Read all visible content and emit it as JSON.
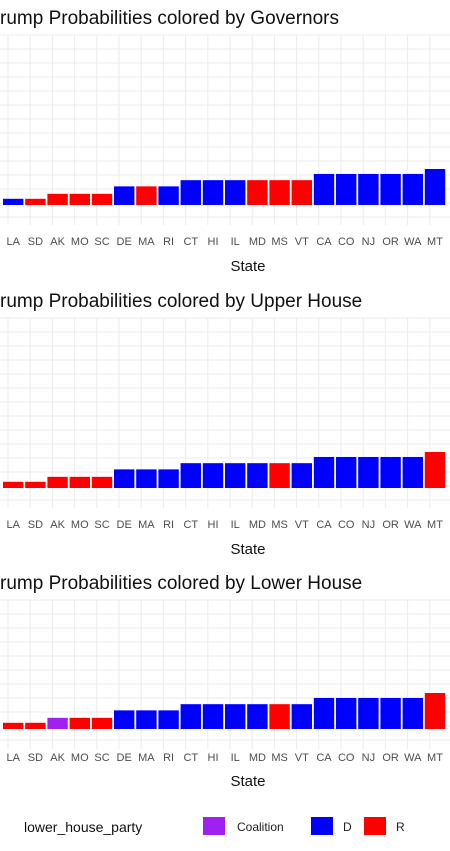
{
  "chart_data": [
    {
      "type": "bar",
      "title": "rump Probabilities colored by Governors",
      "xlabel": "State",
      "x_tick_labels": [
        "LA",
        "SD",
        "AK",
        "MO",
        "SC",
        "DE",
        "MA",
        "RI",
        "CT",
        "HI",
        "IL",
        "MD",
        "MS",
        "VT",
        "CA",
        "CO",
        "NJ",
        "OR",
        "WA",
        "MT"
      ],
      "bars": [
        {
          "value": 0.05,
          "party": "D"
        },
        {
          "value": 0.05,
          "party": "R"
        },
        {
          "value": 0.09,
          "party": "R"
        },
        {
          "value": 0.09,
          "party": "R"
        },
        {
          "value": 0.09,
          "party": "R"
        },
        {
          "value": 0.15,
          "party": "D"
        },
        {
          "value": 0.15,
          "party": "R"
        },
        {
          "value": 0.15,
          "party": "D"
        },
        {
          "value": 0.2,
          "party": "D"
        },
        {
          "value": 0.2,
          "party": "D"
        },
        {
          "value": 0.2,
          "party": "D"
        },
        {
          "value": 0.2,
          "party": "R"
        },
        {
          "value": 0.2,
          "party": "R"
        },
        {
          "value": 0.2,
          "party": "R"
        },
        {
          "value": 0.25,
          "party": "D"
        },
        {
          "value": 0.25,
          "party": "D"
        },
        {
          "value": 0.25,
          "party": "D"
        },
        {
          "value": 0.25,
          "party": "D"
        },
        {
          "value": 0.25,
          "party": "D"
        },
        {
          "value": 0.29,
          "party": "D"
        }
      ],
      "grid": true
    },
    {
      "type": "bar",
      "title": "rump Probabilities colored by Upper House",
      "xlabel": "State",
      "x_tick_labels": [
        "LA",
        "SD",
        "AK",
        "MO",
        "SC",
        "DE",
        "MA",
        "RI",
        "CT",
        "HI",
        "IL",
        "MD",
        "MS",
        "VT",
        "CA",
        "CO",
        "NJ",
        "OR",
        "WA",
        "MT"
      ],
      "bars": [
        {
          "value": 0.05,
          "party": "R"
        },
        {
          "value": 0.05,
          "party": "R"
        },
        {
          "value": 0.09,
          "party": "R"
        },
        {
          "value": 0.09,
          "party": "R"
        },
        {
          "value": 0.09,
          "party": "R"
        },
        {
          "value": 0.15,
          "party": "D"
        },
        {
          "value": 0.15,
          "party": "D"
        },
        {
          "value": 0.15,
          "party": "D"
        },
        {
          "value": 0.2,
          "party": "D"
        },
        {
          "value": 0.2,
          "party": "D"
        },
        {
          "value": 0.2,
          "party": "D"
        },
        {
          "value": 0.2,
          "party": "D"
        },
        {
          "value": 0.2,
          "party": "R"
        },
        {
          "value": 0.2,
          "party": "D"
        },
        {
          "value": 0.25,
          "party": "D"
        },
        {
          "value": 0.25,
          "party": "D"
        },
        {
          "value": 0.25,
          "party": "D"
        },
        {
          "value": 0.25,
          "party": "D"
        },
        {
          "value": 0.25,
          "party": "D"
        },
        {
          "value": 0.29,
          "party": "R"
        }
      ],
      "grid": true
    },
    {
      "type": "bar",
      "title": "rump Probabilities colored by Lower House",
      "xlabel": "State",
      "x_tick_labels": [
        "LA",
        "SD",
        "AK",
        "MO",
        "SC",
        "DE",
        "MA",
        "RI",
        "CT",
        "HI",
        "IL",
        "MD",
        "MS",
        "VT",
        "CA",
        "CO",
        "NJ",
        "OR",
        "WA",
        "MT"
      ],
      "bars": [
        {
          "value": 0.05,
          "party": "R"
        },
        {
          "value": 0.05,
          "party": "R"
        },
        {
          "value": 0.09,
          "party": "Coalition"
        },
        {
          "value": 0.09,
          "party": "R"
        },
        {
          "value": 0.09,
          "party": "R"
        },
        {
          "value": 0.15,
          "party": "D"
        },
        {
          "value": 0.15,
          "party": "D"
        },
        {
          "value": 0.15,
          "party": "D"
        },
        {
          "value": 0.2,
          "party": "D"
        },
        {
          "value": 0.2,
          "party": "D"
        },
        {
          "value": 0.2,
          "party": "D"
        },
        {
          "value": 0.2,
          "party": "D"
        },
        {
          "value": 0.2,
          "party": "R"
        },
        {
          "value": 0.2,
          "party": "D"
        },
        {
          "value": 0.25,
          "party": "D"
        },
        {
          "value": 0.25,
          "party": "D"
        },
        {
          "value": 0.25,
          "party": "D"
        },
        {
          "value": 0.25,
          "party": "D"
        },
        {
          "value": 0.25,
          "party": "D"
        },
        {
          "value": 0.29,
          "party": "R"
        }
      ],
      "grid": true
    }
  ],
  "legend": {
    "title": "lower_house_party",
    "placement": "bottom",
    "items": [
      {
        "label": "Coalition",
        "color": "#A020F0"
      },
      {
        "label": "D",
        "color": "#0000FF"
      },
      {
        "label": "R",
        "color": "#FF0000"
      }
    ]
  },
  "colors": {
    "D": "#0000FF",
    "R": "#FF0000",
    "Coalition": "#A020F0"
  }
}
